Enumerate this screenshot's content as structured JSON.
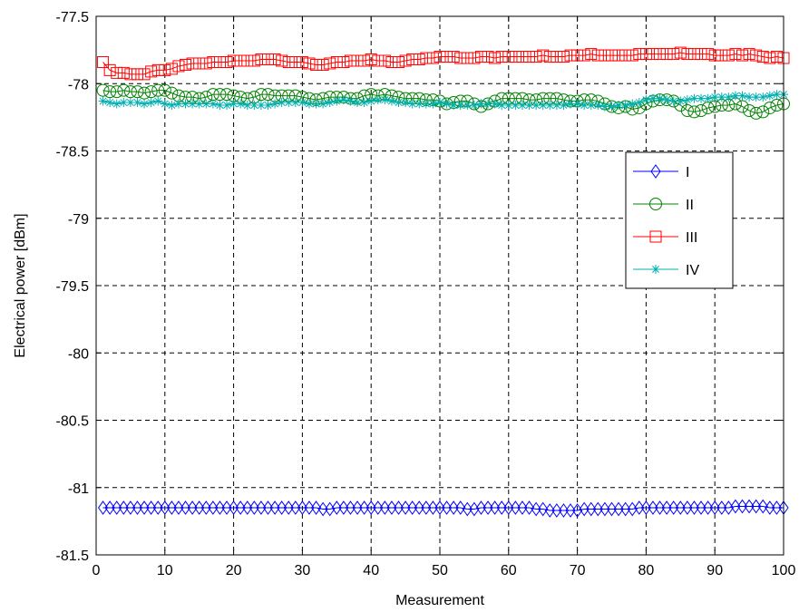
{
  "chart_data": {
    "type": "line",
    "xlabel": "Measurement",
    "ylabel": "Electrical power [dBm]",
    "xlim": [
      0,
      100
    ],
    "ylim": [
      -81.5,
      -77.5
    ],
    "xticks": [
      "0",
      "10",
      "20",
      "30",
      "40",
      "50",
      "60",
      "70",
      "80",
      "90",
      "100"
    ],
    "yticks": [
      "-77.5",
      "-78",
      "-78.5",
      "-79",
      "-79.5",
      "-80",
      "-80.5",
      "-81",
      "-81.5"
    ],
    "grid": true,
    "legend_position": "upper-right",
    "series": [
      {
        "name": "I",
        "color": "#0000ff",
        "marker": "diamond",
        "x": [
          1,
          2,
          3,
          4,
          5,
          6,
          7,
          8,
          9,
          10,
          11,
          12,
          13,
          14,
          15,
          16,
          17,
          18,
          19,
          20,
          21,
          22,
          23,
          24,
          25,
          26,
          27,
          28,
          29,
          30,
          31,
          32,
          33,
          34,
          35,
          36,
          37,
          38,
          39,
          40,
          41,
          42,
          43,
          44,
          45,
          46,
          47,
          48,
          49,
          50,
          51,
          52,
          53,
          54,
          55,
          56,
          57,
          58,
          59,
          60,
          61,
          62,
          63,
          64,
          65,
          66,
          67,
          68,
          69,
          70,
          71,
          72,
          73,
          74,
          75,
          76,
          77,
          78,
          79,
          80,
          81,
          82,
          83,
          84,
          85,
          86,
          87,
          88,
          89,
          90,
          91,
          92,
          93,
          94,
          95,
          96,
          97,
          98,
          99,
          100
        ],
        "values": [
          -81.15,
          -81.15,
          -81.15,
          -81.15,
          -81.15,
          -81.15,
          -81.15,
          -81.15,
          -81.15,
          -81.15,
          -81.15,
          -81.15,
          -81.15,
          -81.15,
          -81.15,
          -81.15,
          -81.15,
          -81.15,
          -81.15,
          -81.15,
          -81.15,
          -81.15,
          -81.15,
          -81.15,
          -81.15,
          -81.15,
          -81.15,
          -81.15,
          -81.15,
          -81.15,
          -81.15,
          -81.15,
          -81.16,
          -81.16,
          -81.15,
          -81.15,
          -81.15,
          -81.15,
          -81.15,
          -81.15,
          -81.15,
          -81.15,
          -81.15,
          -81.15,
          -81.15,
          -81.15,
          -81.15,
          -81.15,
          -81.15,
          -81.15,
          -81.15,
          -81.15,
          -81.15,
          -81.16,
          -81.16,
          -81.15,
          -81.15,
          -81.15,
          -81.15,
          -81.15,
          -81.15,
          -81.15,
          -81.15,
          -81.16,
          -81.16,
          -81.17,
          -81.17,
          -81.17,
          -81.17,
          -81.17,
          -81.16,
          -81.16,
          -81.16,
          -81.16,
          -81.16,
          -81.16,
          -81.16,
          -81.16,
          -81.15,
          -81.15,
          -81.15,
          -81.15,
          -81.15,
          -81.15,
          -81.15,
          -81.15,
          -81.15,
          -81.15,
          -81.15,
          -81.15,
          -81.15,
          -81.15,
          -81.14,
          -81.14,
          -81.14,
          -81.14,
          -81.14,
          -81.15,
          -81.15,
          -81.15
        ]
      },
      {
        "name": "II",
        "color": "#008000",
        "marker": "circle",
        "x": [
          1,
          2,
          3,
          4,
          5,
          6,
          7,
          8,
          9,
          10,
          11,
          12,
          13,
          14,
          15,
          16,
          17,
          18,
          19,
          20,
          21,
          22,
          23,
          24,
          25,
          26,
          27,
          28,
          29,
          30,
          31,
          32,
          33,
          34,
          35,
          36,
          37,
          38,
          39,
          40,
          41,
          42,
          43,
          44,
          45,
          46,
          47,
          48,
          49,
          50,
          51,
          52,
          53,
          54,
          55,
          56,
          57,
          58,
          59,
          60,
          61,
          62,
          63,
          64,
          65,
          66,
          67,
          68,
          69,
          70,
          71,
          72,
          73,
          74,
          75,
          76,
          77,
          78,
          79,
          80,
          81,
          82,
          83,
          84,
          85,
          86,
          87,
          88,
          89,
          90,
          91,
          92,
          93,
          94,
          95,
          96,
          97,
          98,
          99,
          100
        ],
        "values": [
          -78.05,
          -78.06,
          -78.06,
          -78.05,
          -78.06,
          -78.06,
          -78.07,
          -78.06,
          -78.05,
          -78.05,
          -78.07,
          -78.09,
          -78.1,
          -78.1,
          -78.11,
          -78.1,
          -78.08,
          -78.08,
          -78.08,
          -78.09,
          -78.1,
          -78.11,
          -78.1,
          -78.08,
          -78.08,
          -78.09,
          -78.09,
          -78.09,
          -78.09,
          -78.1,
          -78.11,
          -78.12,
          -78.11,
          -78.1,
          -78.1,
          -78.1,
          -78.11,
          -78.11,
          -78.09,
          -78.08,
          -78.09,
          -78.08,
          -78.09,
          -78.1,
          -78.11,
          -78.11,
          -78.11,
          -78.12,
          -78.12,
          -78.13,
          -78.15,
          -78.14,
          -78.13,
          -78.13,
          -78.15,
          -78.17,
          -78.15,
          -78.13,
          -78.11,
          -78.11,
          -78.11,
          -78.11,
          -78.12,
          -78.12,
          -78.11,
          -78.11,
          -78.11,
          -78.12,
          -78.13,
          -78.13,
          -78.12,
          -78.12,
          -78.13,
          -78.15,
          -78.17,
          -78.18,
          -78.17,
          -78.19,
          -78.18,
          -78.15,
          -78.13,
          -78.12,
          -78.12,
          -78.13,
          -78.16,
          -78.2,
          -78.21,
          -78.2,
          -78.18,
          -78.17,
          -78.16,
          -78.16,
          -78.15,
          -78.17,
          -78.2,
          -78.22,
          -78.21,
          -78.18,
          -78.16,
          -78.15
        ]
      },
      {
        "name": "III",
        "color": "#ff0000",
        "marker": "square",
        "x": [
          1,
          2,
          3,
          4,
          5,
          6,
          7,
          8,
          9,
          10,
          11,
          12,
          13,
          14,
          15,
          16,
          17,
          18,
          19,
          20,
          21,
          22,
          23,
          24,
          25,
          26,
          27,
          28,
          29,
          30,
          31,
          32,
          33,
          34,
          35,
          36,
          37,
          38,
          39,
          40,
          41,
          42,
          43,
          44,
          45,
          46,
          47,
          48,
          49,
          50,
          51,
          52,
          53,
          54,
          55,
          56,
          57,
          58,
          59,
          60,
          61,
          62,
          63,
          64,
          65,
          66,
          67,
          68,
          69,
          70,
          71,
          72,
          73,
          74,
          75,
          76,
          77,
          78,
          79,
          80,
          81,
          82,
          83,
          84,
          85,
          86,
          87,
          88,
          89,
          90,
          91,
          92,
          93,
          94,
          95,
          96,
          97,
          98,
          99,
          100
        ],
        "values": [
          -77.84,
          -77.9,
          -77.92,
          -77.92,
          -77.93,
          -77.93,
          -77.93,
          -77.91,
          -77.9,
          -77.9,
          -77.89,
          -77.87,
          -77.86,
          -77.85,
          -77.85,
          -77.85,
          -77.84,
          -77.84,
          -77.84,
          -77.83,
          -77.83,
          -77.83,
          -77.83,
          -77.82,
          -77.82,
          -77.82,
          -77.83,
          -77.84,
          -77.84,
          -77.84,
          -77.85,
          -77.86,
          -77.86,
          -77.85,
          -77.84,
          -77.84,
          -77.83,
          -77.83,
          -77.83,
          -77.82,
          -77.83,
          -77.83,
          -77.84,
          -77.84,
          -77.83,
          -77.82,
          -77.82,
          -77.81,
          -77.81,
          -77.8,
          -77.8,
          -77.8,
          -77.81,
          -77.81,
          -77.81,
          -77.8,
          -77.8,
          -77.81,
          -77.8,
          -77.8,
          -77.8,
          -77.8,
          -77.8,
          -77.8,
          -77.79,
          -77.8,
          -77.8,
          -77.8,
          -77.79,
          -77.79,
          -77.79,
          -77.78,
          -77.79,
          -77.79,
          -77.79,
          -77.79,
          -77.79,
          -77.79,
          -77.78,
          -77.78,
          -77.78,
          -77.78,
          -77.78,
          -77.78,
          -77.77,
          -77.78,
          -77.78,
          -77.78,
          -77.78,
          -77.79,
          -77.79,
          -77.79,
          -77.78,
          -77.79,
          -77.78,
          -77.79,
          -77.8,
          -77.81,
          -77.8,
          -77.81
        ]
      },
      {
        "name": "IV",
        "color": "#00b0b0",
        "marker": "star",
        "x": [
          1,
          2,
          3,
          4,
          5,
          6,
          7,
          8,
          9,
          10,
          11,
          12,
          13,
          14,
          15,
          16,
          17,
          18,
          19,
          20,
          21,
          22,
          23,
          24,
          25,
          26,
          27,
          28,
          29,
          30,
          31,
          32,
          33,
          34,
          35,
          36,
          37,
          38,
          39,
          40,
          41,
          42,
          43,
          44,
          45,
          46,
          47,
          48,
          49,
          50,
          51,
          52,
          53,
          54,
          55,
          56,
          57,
          58,
          59,
          60,
          61,
          62,
          63,
          64,
          65,
          66,
          67,
          68,
          69,
          70,
          71,
          72,
          73,
          74,
          75,
          76,
          77,
          78,
          79,
          80,
          81,
          82,
          83,
          84,
          85,
          86,
          87,
          88,
          89,
          90,
          91,
          92,
          93,
          94,
          95,
          96,
          97,
          98,
          99,
          100
        ],
        "values": [
          -78.13,
          -78.14,
          -78.15,
          -78.14,
          -78.14,
          -78.14,
          -78.15,
          -78.14,
          -78.13,
          -78.15,
          -78.16,
          -78.15,
          -78.15,
          -78.15,
          -78.15,
          -78.15,
          -78.15,
          -78.16,
          -78.16,
          -78.15,
          -78.15,
          -78.16,
          -78.16,
          -78.16,
          -78.16,
          -78.15,
          -78.14,
          -78.14,
          -78.14,
          -78.14,
          -78.15,
          -78.15,
          -78.15,
          -78.14,
          -78.13,
          -78.12,
          -78.13,
          -78.14,
          -78.14,
          -78.13,
          -78.12,
          -78.12,
          -78.13,
          -78.14,
          -78.14,
          -78.15,
          -78.15,
          -78.15,
          -78.15,
          -78.14,
          -78.15,
          -78.16,
          -78.16,
          -78.16,
          -78.16,
          -78.15,
          -78.15,
          -78.15,
          -78.16,
          -78.16,
          -78.16,
          -78.16,
          -78.16,
          -78.16,
          -78.16,
          -78.16,
          -78.16,
          -78.16,
          -78.15,
          -78.15,
          -78.16,
          -78.16,
          -78.16,
          -78.17,
          -78.17,
          -78.16,
          -78.16,
          -78.15,
          -78.14,
          -78.12,
          -78.11,
          -78.11,
          -78.12,
          -78.13,
          -78.13,
          -78.12,
          -78.11,
          -78.11,
          -78.11,
          -78.1,
          -78.1,
          -78.1,
          -78.09,
          -78.09,
          -78.1,
          -78.1,
          -78.1,
          -78.09,
          -78.08,
          -78.08
        ]
      }
    ]
  }
}
